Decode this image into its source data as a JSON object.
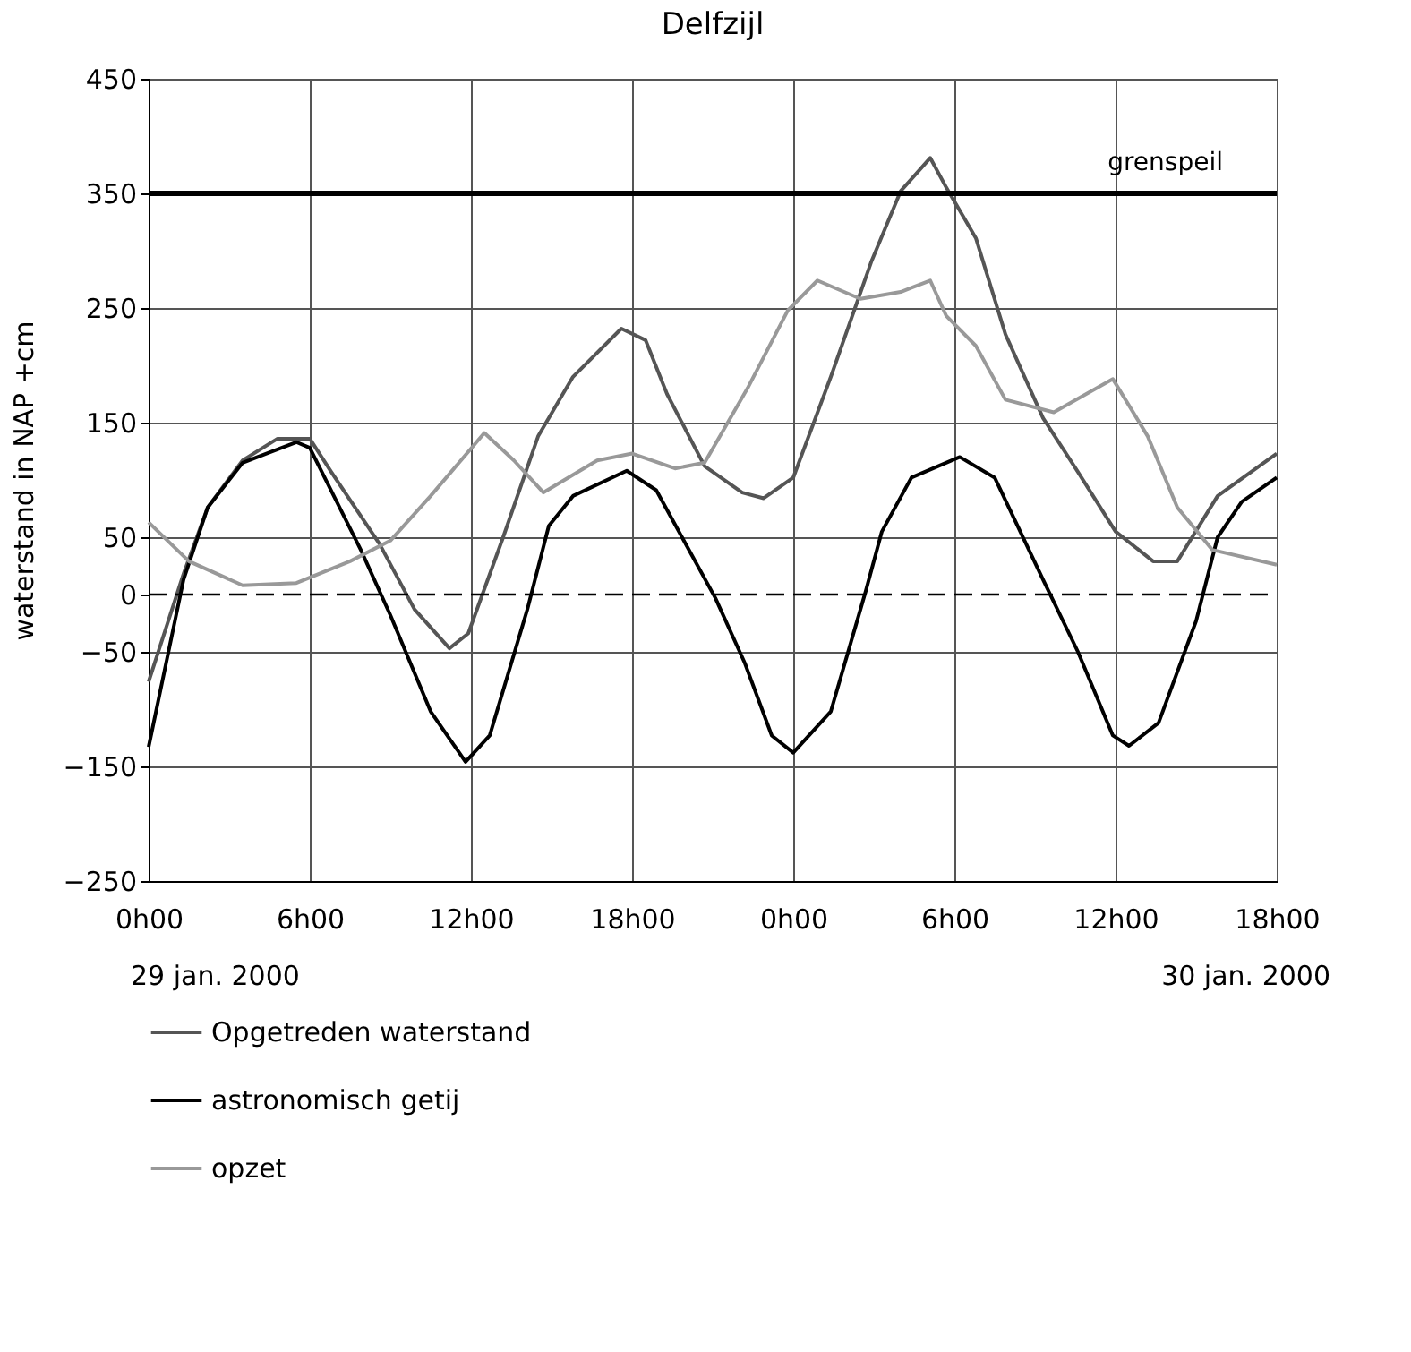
{
  "chart_data": {
    "type": "line",
    "title": "Delfzijl",
    "ylabel": "waterstand in NAP +cm",
    "xlim": [
      "2000-01-29T00:00",
      "2000-01-30T18:00"
    ],
    "xticks": [
      {
        "value": "2000-01-29T00:00",
        "label": "0h00"
      },
      {
        "value": "2000-01-29T06:00",
        "label": "6h00"
      },
      {
        "value": "2000-01-29T12:00",
        "label": "12h00"
      },
      {
        "value": "2000-01-29T18:00",
        "label": "18h00"
      },
      {
        "value": "2000-01-30T00:00",
        "label": "0h00"
      },
      {
        "value": "2000-01-30T06:00",
        "label": "6h00"
      },
      {
        "value": "2000-01-30T12:00",
        "label": "12h00"
      },
      {
        "value": "2000-01-30T18:00",
        "label": "18h00"
      }
    ],
    "ylim": [
      -250,
      450
    ],
    "yticks": [
      -250,
      -150,
      -50,
      0,
      50,
      150,
      250,
      350,
      450
    ],
    "grid": true,
    "legend": "bottom",
    "line_style": "solid",
    "marker": "none",
    "ref_lines": [
      {
        "axis": "y",
        "value": 350,
        "label": "grenspeil",
        "color": "#000000",
        "line_style": "solid"
      },
      {
        "axis": "y",
        "value": 0,
        "color": "#000000",
        "line_style": "dashed"
      }
    ],
    "annotations": [
      "29 jan. 2000",
      "30 jan. 2000"
    ],
    "series": [
      {
        "name": "Opgetreden waterstand",
        "color": "#555555",
        "x": [
          "2000-01-29T00:00",
          "2000-01-29T01:18",
          "2000-01-29T02:12",
          "2000-01-29T03:30",
          "2000-01-29T04:48",
          "2000-01-29T06:00",
          "2000-01-29T06:48",
          "2000-01-29T08:36",
          "2000-01-29T09:54",
          "2000-01-29T11:12",
          "2000-01-29T11:54",
          "2000-01-29T13:12",
          "2000-01-29T14:30",
          "2000-01-29T15:48",
          "2000-01-29T17:36",
          "2000-01-29T18:30",
          "2000-01-29T19:18",
          "2000-01-29T20:42",
          "2000-01-29T22:06",
          "2000-01-29T22:54",
          "2000-01-30T00:00",
          "2000-01-30T01:24",
          "2000-01-30T02:54",
          "2000-01-30T04:00",
          "2000-01-30T05:06",
          "2000-01-30T05:42",
          "2000-01-30T06:48",
          "2000-01-30T07:54",
          "2000-01-30T09:18",
          "2000-01-30T10:36",
          "2000-01-30T12:00",
          "2000-01-30T13:24",
          "2000-01-30T14:18",
          "2000-01-30T15:48",
          "2000-01-30T18:00"
        ],
        "values": [
          -76,
          18,
          76,
          117,
          136,
          136,
          107,
          44,
          -13,
          -47,
          -34,
          50,
          138,
          190,
          232,
          222,
          175,
          112,
          89,
          84,
          102,
          190,
          290,
          352,
          381,
          355,
          311,
          227,
          154,
          107,
          55,
          29,
          29,
          86,
          123
        ]
      },
      {
        "name": "astronomisch getij",
        "color": "#000000",
        "x": [
          "2000-01-29T00:00",
          "2000-01-29T01:18",
          "2000-01-29T02:12",
          "2000-01-29T03:30",
          "2000-01-29T05:30",
          "2000-01-29T06:00",
          "2000-01-29T07:54",
          "2000-01-29T09:00",
          "2000-01-29T10:30",
          "2000-01-29T11:48",
          "2000-01-29T12:42",
          "2000-01-29T14:06",
          "2000-01-29T14:54",
          "2000-01-29T15:48",
          "2000-01-29T17:48",
          "2000-01-29T18:54",
          "2000-01-29T20:00",
          "2000-01-29T21:06",
          "2000-01-29T22:12",
          "2000-01-29T23:12",
          "2000-01-30T00:00",
          "2000-01-30T01:24",
          "2000-01-30T02:42",
          "2000-01-30T03:18",
          "2000-01-30T04:24",
          "2000-01-30T06:12",
          "2000-01-30T07:30",
          "2000-01-30T09:18",
          "2000-01-30T10:36",
          "2000-01-30T11:54",
          "2000-01-30T12:30",
          "2000-01-30T13:36",
          "2000-01-30T15:00",
          "2000-01-30T15:48",
          "2000-01-30T16:42",
          "2000-01-30T18:00"
        ],
        "values": [
          -133,
          13,
          76,
          115,
          133,
          128,
          39,
          -18,
          -102,
          -146,
          -123,
          -13,
          60,
          86,
          108,
          91,
          44,
          -3,
          -60,
          -123,
          -138,
          -102,
          3,
          55,
          102,
          120,
          102,
          13,
          -50,
          -123,
          -132,
          -112,
          -23,
          50,
          81,
          102
        ]
      },
      {
        "name": "opzet",
        "color": "#999999",
        "x": [
          "2000-01-29T00:00",
          "2000-01-29T01:30",
          "2000-01-29T03:30",
          "2000-01-29T05:30",
          "2000-01-29T07:30",
          "2000-01-29T09:00",
          "2000-01-29T10:30",
          "2000-01-29T12:30",
          "2000-01-29T13:36",
          "2000-01-29T14:42",
          "2000-01-29T16:42",
          "2000-01-29T18:00",
          "2000-01-29T19:36",
          "2000-01-29T20:42",
          "2000-01-29T22:18",
          "2000-01-29T23:48",
          "2000-01-30T00:54",
          "2000-01-30T02:30",
          "2000-01-30T04:00",
          "2000-01-30T05:06",
          "2000-01-30T05:42",
          "2000-01-30T06:48",
          "2000-01-30T07:54",
          "2000-01-30T09:42",
          "2000-01-30T11:54",
          "2000-01-30T13:12",
          "2000-01-30T14:18",
          "2000-01-30T15:36",
          "2000-01-30T18:00"
        ],
        "values": [
          63,
          29,
          8,
          10,
          29,
          47,
          86,
          141,
          117,
          89,
          117,
          123,
          110,
          115,
          180,
          248,
          274,
          258,
          264,
          274,
          243,
          217,
          170,
          159,
          188,
          138,
          76,
          39,
          26
        ]
      }
    ]
  }
}
